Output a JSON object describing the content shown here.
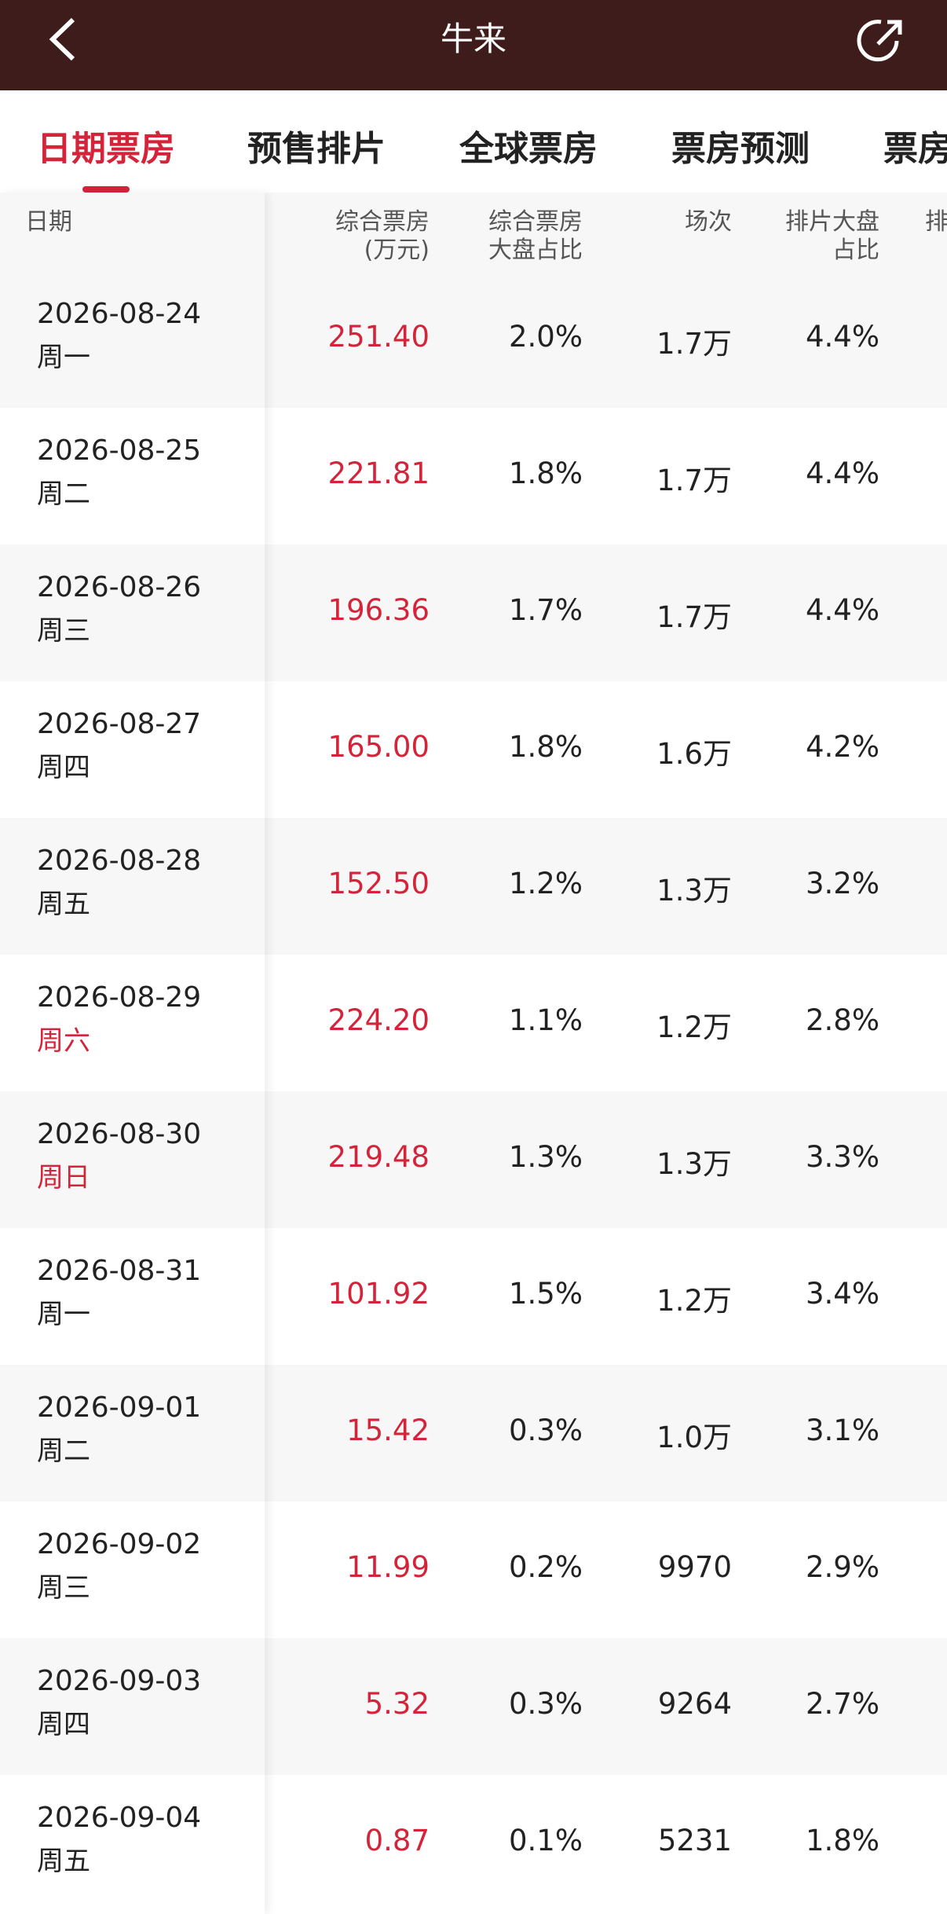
{
  "header": {
    "title": "牛来"
  },
  "tabs": [
    "日期票房",
    "预售排片",
    "全球票房",
    "票房预测",
    "票房"
  ],
  "active_tab": 0,
  "table": {
    "headers": [
      [
        "日期"
      ],
      [
        "综合票房",
        "(万元)"
      ],
      [
        "综合票房",
        "大盘占比"
      ],
      [
        "场次"
      ],
      [
        "排片大盘",
        "占比"
      ],
      [
        "排"
      ]
    ],
    "rows": [
      {
        "date": "2026-08-24",
        "weekday": "周一",
        "box": "251.40",
        "share": "2.0%",
        "shows": "1.7万",
        "schedule": "4.4%",
        "weekend": false
      },
      {
        "date": "2026-08-25",
        "weekday": "周二",
        "box": "221.81",
        "share": "1.8%",
        "shows": "1.7万",
        "schedule": "4.4%",
        "weekend": false
      },
      {
        "date": "2026-08-26",
        "weekday": "周三",
        "box": "196.36",
        "share": "1.7%",
        "shows": "1.7万",
        "schedule": "4.4%",
        "weekend": false
      },
      {
        "date": "2026-08-27",
        "weekday": "周四",
        "box": "165.00",
        "share": "1.8%",
        "shows": "1.6万",
        "schedule": "4.2%",
        "weekend": false
      },
      {
        "date": "2026-08-28",
        "weekday": "周五",
        "box": "152.50",
        "share": "1.2%",
        "shows": "1.3万",
        "schedule": "3.2%",
        "weekend": false
      },
      {
        "date": "2026-08-29",
        "weekday": "周六",
        "box": "224.20",
        "share": "1.1%",
        "shows": "1.2万",
        "schedule": "2.8%",
        "weekend": true
      },
      {
        "date": "2026-08-30",
        "weekday": "周日",
        "box": "219.48",
        "share": "1.3%",
        "shows": "1.3万",
        "schedule": "3.3%",
        "weekend": true
      },
      {
        "date": "2026-08-31",
        "weekday": "周一",
        "box": "101.92",
        "share": "1.5%",
        "shows": "1.2万",
        "schedule": "3.4%",
        "weekend": false
      },
      {
        "date": "2026-09-01",
        "weekday": "周二",
        "box": "15.42",
        "share": "0.3%",
        "shows": "1.0万",
        "schedule": "3.1%",
        "weekend": false
      },
      {
        "date": "2026-09-02",
        "weekday": "周三",
        "box": "11.99",
        "share": "0.2%",
        "shows": "9970",
        "schedule": "2.9%",
        "weekend": false
      },
      {
        "date": "2026-09-03",
        "weekday": "周四",
        "box": "5.32",
        "share": "0.3%",
        "shows": "9264",
        "schedule": "2.7%",
        "weekend": false
      },
      {
        "date": "2026-09-04",
        "weekday": "周五",
        "box": "0.87",
        "share": "0.1%",
        "shows": "5231",
        "schedule": "1.8%",
        "weekend": false
      }
    ]
  }
}
